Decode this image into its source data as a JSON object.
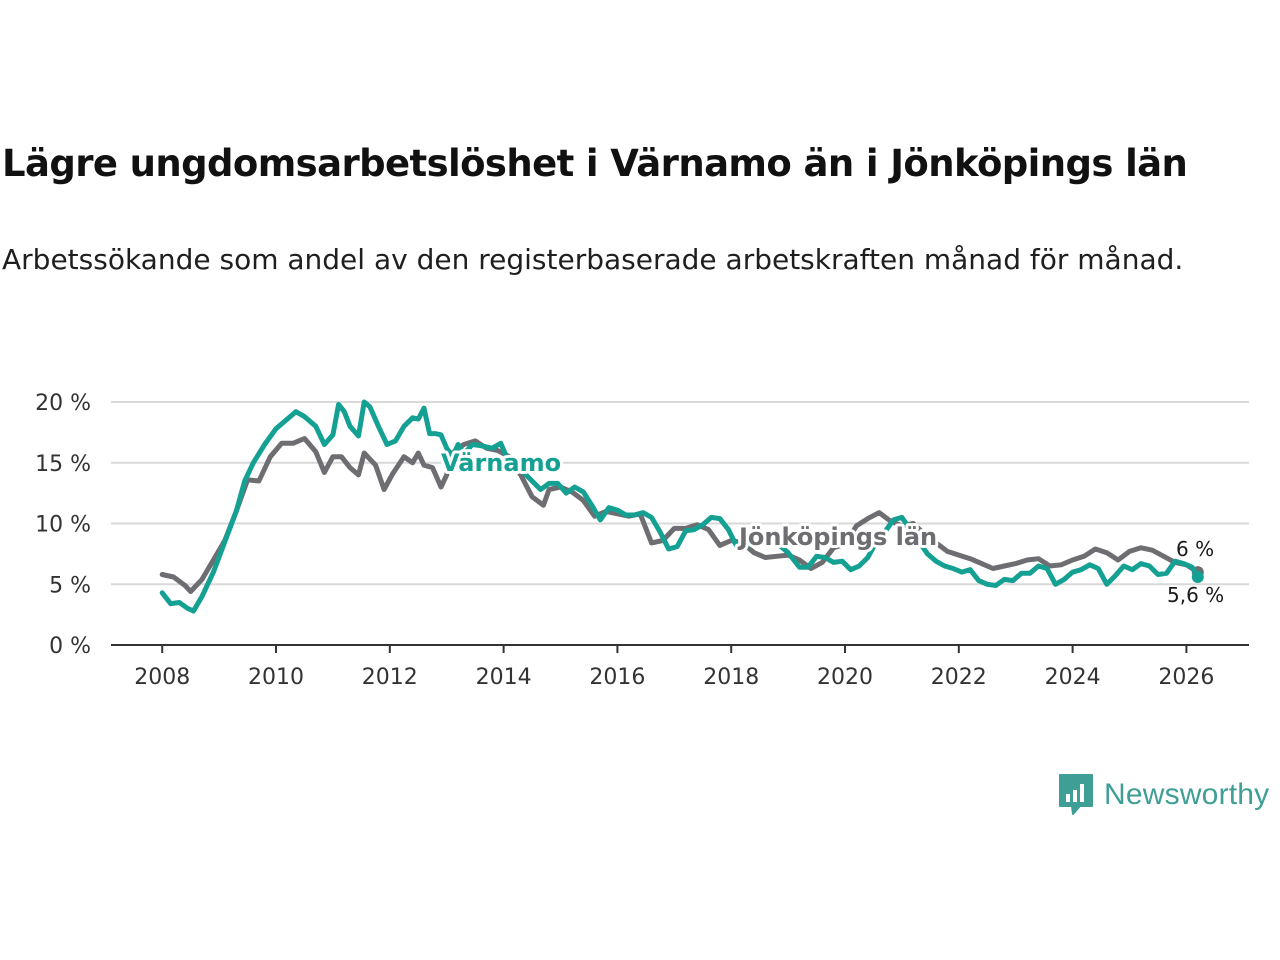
{
  "header": {
    "title": "Lägre ungdomsarbetslöshet i Värnamo än i Jönköpings län",
    "subtitle": "Arbetssökande som andel av den registerbaserade arbetskraften månad för månad."
  },
  "brand": {
    "name": "Newsworthy",
    "color": "#3f9e96"
  },
  "chart_data": {
    "type": "line",
    "title": "Lägre ungdomsarbetslöshet i Värnamo än i Jönköpings län",
    "xlabel": "",
    "ylabel": "",
    "xlim": [
      2007.1,
      2027.1
    ],
    "ylim": [
      0,
      20
    ],
    "grid": true,
    "x_ticks": [
      2008,
      2010,
      2012,
      2014,
      2016,
      2018,
      2020,
      2022,
      2024,
      2026
    ],
    "x_tick_labels": [
      "2008",
      "2010",
      "2012",
      "2014",
      "2016",
      "2018",
      "2020",
      "2022",
      "2024",
      "2026"
    ],
    "y_ticks": [
      0,
      5,
      10,
      15,
      20
    ],
    "y_tick_labels": [
      "0 %",
      "5 %",
      "10 %",
      "15 %",
      "20 %"
    ],
    "series": [
      {
        "name": "Jönköpings län",
        "label": "Jönköpings län",
        "color": "#6e6d72",
        "end_label": "6 %",
        "points": [
          [
            2008.0,
            5.8
          ],
          [
            2008.2,
            5.6
          ],
          [
            2008.4,
            4.9
          ],
          [
            2008.5,
            4.4
          ],
          [
            2008.7,
            5.4
          ],
          [
            2008.9,
            7.0
          ],
          [
            2009.1,
            8.6
          ],
          [
            2009.3,
            11.0
          ],
          [
            2009.5,
            13.6
          ],
          [
            2009.7,
            13.5
          ],
          [
            2009.9,
            15.5
          ],
          [
            2010.1,
            16.6
          ],
          [
            2010.3,
            16.6
          ],
          [
            2010.5,
            17.0
          ],
          [
            2010.7,
            15.9
          ],
          [
            2010.85,
            14.2
          ],
          [
            2011.0,
            15.5
          ],
          [
            2011.15,
            15.5
          ],
          [
            2011.3,
            14.6
          ],
          [
            2011.45,
            14.0
          ],
          [
            2011.55,
            15.8
          ],
          [
            2011.75,
            14.8
          ],
          [
            2011.9,
            12.8
          ],
          [
            2012.05,
            14.1
          ],
          [
            2012.25,
            15.5
          ],
          [
            2012.4,
            15.0
          ],
          [
            2012.5,
            15.8
          ],
          [
            2012.6,
            14.8
          ],
          [
            2012.75,
            14.6
          ],
          [
            2012.9,
            13.0
          ],
          [
            2013.0,
            14.0
          ],
          [
            2013.1,
            15.8
          ],
          [
            2013.3,
            16.5
          ],
          [
            2013.5,
            16.8
          ],
          [
            2013.7,
            16.2
          ],
          [
            2013.9,
            16.0
          ],
          [
            2014.1,
            15.5
          ],
          [
            2014.3,
            14.0
          ],
          [
            2014.5,
            12.2
          ],
          [
            2014.7,
            11.5
          ],
          [
            2014.8,
            12.8
          ],
          [
            2015.0,
            13.0
          ],
          [
            2015.2,
            12.6
          ],
          [
            2015.4,
            11.9
          ],
          [
            2015.6,
            10.6
          ],
          [
            2015.8,
            11.0
          ],
          [
            2016.0,
            10.8
          ],
          [
            2016.2,
            10.6
          ],
          [
            2016.4,
            10.8
          ],
          [
            2016.6,
            8.4
          ],
          [
            2016.8,
            8.6
          ],
          [
            2017.0,
            9.6
          ],
          [
            2017.2,
            9.6
          ],
          [
            2017.4,
            9.9
          ],
          [
            2017.6,
            9.5
          ],
          [
            2017.8,
            8.2
          ],
          [
            2018.0,
            8.6
          ],
          [
            2018.2,
            8.4
          ],
          [
            2018.4,
            7.6
          ],
          [
            2018.6,
            7.2
          ],
          [
            2018.8,
            7.3
          ],
          [
            2019.0,
            7.4
          ],
          [
            2019.2,
            7.0
          ],
          [
            2019.4,
            6.3
          ],
          [
            2019.6,
            6.8
          ],
          [
            2019.8,
            8.0
          ],
          [
            2020.0,
            8.3
          ],
          [
            2020.2,
            9.8
          ],
          [
            2020.4,
            10.4
          ],
          [
            2020.6,
            10.9
          ],
          [
            2020.8,
            10.2
          ],
          [
            2021.0,
            9.8
          ],
          [
            2021.2,
            10.0
          ],
          [
            2021.4,
            9.1
          ],
          [
            2021.6,
            8.4
          ],
          [
            2021.8,
            7.7
          ],
          [
            2022.0,
            7.4
          ],
          [
            2022.2,
            7.1
          ],
          [
            2022.4,
            6.7
          ],
          [
            2022.6,
            6.3
          ],
          [
            2022.8,
            6.5
          ],
          [
            2023.0,
            6.7
          ],
          [
            2023.2,
            7.0
          ],
          [
            2023.4,
            7.1
          ],
          [
            2023.6,
            6.5
          ],
          [
            2023.8,
            6.6
          ],
          [
            2024.0,
            7.0
          ],
          [
            2024.2,
            7.3
          ],
          [
            2024.4,
            7.9
          ],
          [
            2024.6,
            7.6
          ],
          [
            2024.8,
            7.0
          ],
          [
            2025.0,
            7.7
          ],
          [
            2025.2,
            8.0
          ],
          [
            2025.4,
            7.8
          ],
          [
            2025.6,
            7.3
          ],
          [
            2025.8,
            6.8
          ],
          [
            2026.0,
            6.6
          ],
          [
            2026.2,
            6.0
          ]
        ]
      },
      {
        "name": "Värnamo",
        "label": "Värnamo",
        "color": "#14a092",
        "end_label": "5,6 %",
        "points": [
          [
            2008.0,
            4.3
          ],
          [
            2008.15,
            3.4
          ],
          [
            2008.3,
            3.5
          ],
          [
            2008.45,
            3.0
          ],
          [
            2008.55,
            2.8
          ],
          [
            2008.7,
            4.0
          ],
          [
            2008.9,
            6.0
          ],
          [
            2009.1,
            8.5
          ],
          [
            2009.3,
            11.0
          ],
          [
            2009.45,
            13.5
          ],
          [
            2009.6,
            15.0
          ],
          [
            2009.8,
            16.5
          ],
          [
            2010.0,
            17.8
          ],
          [
            2010.2,
            18.6
          ],
          [
            2010.35,
            19.2
          ],
          [
            2010.5,
            18.8
          ],
          [
            2010.7,
            18.0
          ],
          [
            2010.85,
            16.5
          ],
          [
            2011.0,
            17.3
          ],
          [
            2011.1,
            19.8
          ],
          [
            2011.2,
            19.2
          ],
          [
            2011.3,
            18.0
          ],
          [
            2011.45,
            17.2
          ],
          [
            2011.55,
            20.0
          ],
          [
            2011.65,
            19.6
          ],
          [
            2011.8,
            18.0
          ],
          [
            2011.95,
            16.5
          ],
          [
            2012.1,
            16.8
          ],
          [
            2012.25,
            18.0
          ],
          [
            2012.4,
            18.7
          ],
          [
            2012.5,
            18.6
          ],
          [
            2012.6,
            19.5
          ],
          [
            2012.7,
            17.4
          ],
          [
            2012.8,
            17.4
          ],
          [
            2012.9,
            17.3
          ],
          [
            2013.0,
            16.2
          ],
          [
            2013.1,
            15.5
          ],
          [
            2013.2,
            16.5
          ],
          [
            2013.3,
            15.7
          ],
          [
            2013.45,
            16.5
          ],
          [
            2013.6,
            16.4
          ],
          [
            2013.8,
            16.2
          ],
          [
            2013.95,
            16.6
          ],
          [
            2014.05,
            15.5
          ],
          [
            2014.2,
            15.0
          ],
          [
            2014.35,
            14.2
          ],
          [
            2014.5,
            13.5
          ],
          [
            2014.65,
            12.8
          ],
          [
            2014.8,
            13.3
          ],
          [
            2014.95,
            13.3
          ],
          [
            2015.1,
            12.5
          ],
          [
            2015.25,
            13.0
          ],
          [
            2015.4,
            12.6
          ],
          [
            2015.55,
            11.5
          ],
          [
            2015.7,
            10.3
          ],
          [
            2015.85,
            11.3
          ],
          [
            2016.0,
            11.1
          ],
          [
            2016.15,
            10.7
          ],
          [
            2016.3,
            10.7
          ],
          [
            2016.45,
            10.9
          ],
          [
            2016.6,
            10.5
          ],
          [
            2016.75,
            9.3
          ],
          [
            2016.9,
            7.9
          ],
          [
            2017.05,
            8.1
          ],
          [
            2017.2,
            9.4
          ],
          [
            2017.35,
            9.5
          ],
          [
            2017.5,
            9.9
          ],
          [
            2017.65,
            10.5
          ],
          [
            2017.8,
            10.4
          ],
          [
            2017.95,
            9.5
          ],
          [
            2018.1,
            8.1
          ],
          [
            2018.25,
            8.0
          ],
          [
            2018.4,
            9.2
          ],
          [
            2018.55,
            9.1
          ],
          [
            2018.7,
            8.4
          ],
          [
            2018.85,
            8.2
          ],
          [
            2019.0,
            7.6
          ],
          [
            2019.1,
            7.0
          ],
          [
            2019.2,
            6.4
          ],
          [
            2019.35,
            6.4
          ],
          [
            2019.5,
            7.3
          ],
          [
            2019.65,
            7.2
          ],
          [
            2019.8,
            6.8
          ],
          [
            2019.95,
            6.9
          ],
          [
            2020.1,
            6.2
          ],
          [
            2020.25,
            6.5
          ],
          [
            2020.4,
            7.2
          ],
          [
            2020.55,
            8.5
          ],
          [
            2020.7,
            9.3
          ],
          [
            2020.85,
            10.3
          ],
          [
            2021.0,
            10.5
          ],
          [
            2021.15,
            9.5
          ],
          [
            2021.3,
            8.5
          ],
          [
            2021.45,
            7.5
          ],
          [
            2021.6,
            6.9
          ],
          [
            2021.75,
            6.5
          ],
          [
            2021.9,
            6.3
          ],
          [
            2022.05,
            6.0
          ],
          [
            2022.2,
            6.2
          ],
          [
            2022.35,
            5.3
          ],
          [
            2022.5,
            5.0
          ],
          [
            2022.65,
            4.9
          ],
          [
            2022.8,
            5.4
          ],
          [
            2022.95,
            5.3
          ],
          [
            2023.1,
            5.9
          ],
          [
            2023.25,
            5.9
          ],
          [
            2023.4,
            6.5
          ],
          [
            2023.55,
            6.3
          ],
          [
            2023.7,
            5.0
          ],
          [
            2023.85,
            5.4
          ],
          [
            2024.0,
            6.0
          ],
          [
            2024.15,
            6.2
          ],
          [
            2024.3,
            6.6
          ],
          [
            2024.45,
            6.3
          ],
          [
            2024.6,
            5.0
          ],
          [
            2024.75,
            5.7
          ],
          [
            2024.9,
            6.5
          ],
          [
            2025.05,
            6.2
          ],
          [
            2025.2,
            6.7
          ],
          [
            2025.35,
            6.5
          ],
          [
            2025.5,
            5.8
          ],
          [
            2025.65,
            5.9
          ],
          [
            2025.8,
            6.9
          ],
          [
            2025.95,
            6.7
          ],
          [
            2026.1,
            6.4
          ],
          [
            2026.2,
            5.6
          ]
        ]
      }
    ]
  }
}
